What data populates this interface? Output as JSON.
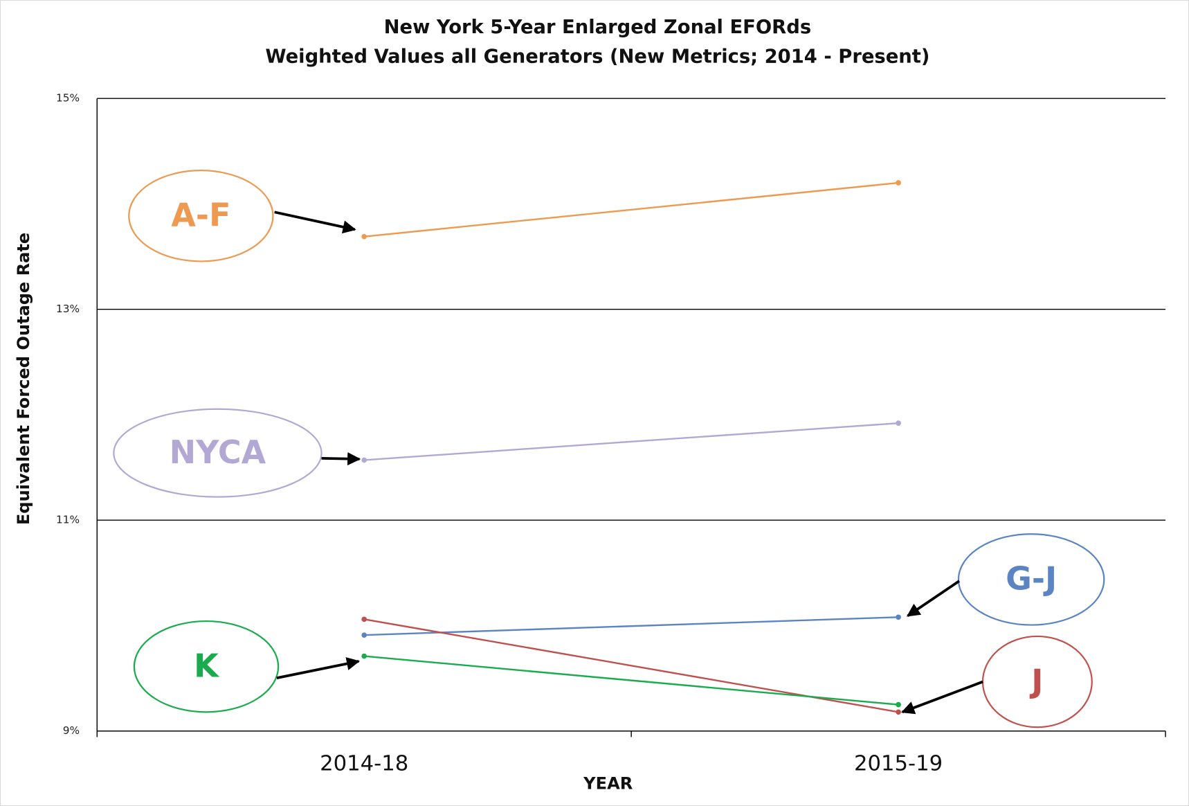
{
  "chart_data": {
    "type": "line",
    "title": "New York 5-Year Enlarged Zonal EFORds",
    "subtitle": "Weighted Values all Generators (New Metrics; 2014 - Present)",
    "x_label": "YEAR",
    "y_label": "Equivalent Forced Outage Rate",
    "categories": [
      "2014-18",
      "2015-19"
    ],
    "ylim": [
      9,
      15
    ],
    "yticks": [
      {
        "value": 9,
        "label": "9%"
      },
      {
        "value": 11,
        "label": "11%"
      },
      {
        "value": 13,
        "label": "13%"
      },
      {
        "value": 15,
        "label": "15%"
      }
    ],
    "grid": true,
    "series": [
      {
        "name": "A-F",
        "color": "#ed9a50",
        "values": [
          13.69,
          14.2
        ]
      },
      {
        "name": "NYCA",
        "color": "#b3a8d4",
        "values": [
          11.57,
          11.92
        ]
      },
      {
        "name": "G-J",
        "color": "#5b84c4",
        "values": [
          9.91,
          10.08
        ]
      },
      {
        "name": "J",
        "color": "#c0504d",
        "values": [
          10.06,
          9.18
        ]
      },
      {
        "name": "K",
        "color": "#1aab4e",
        "values": [
          9.71,
          9.25
        ]
      }
    ]
  }
}
